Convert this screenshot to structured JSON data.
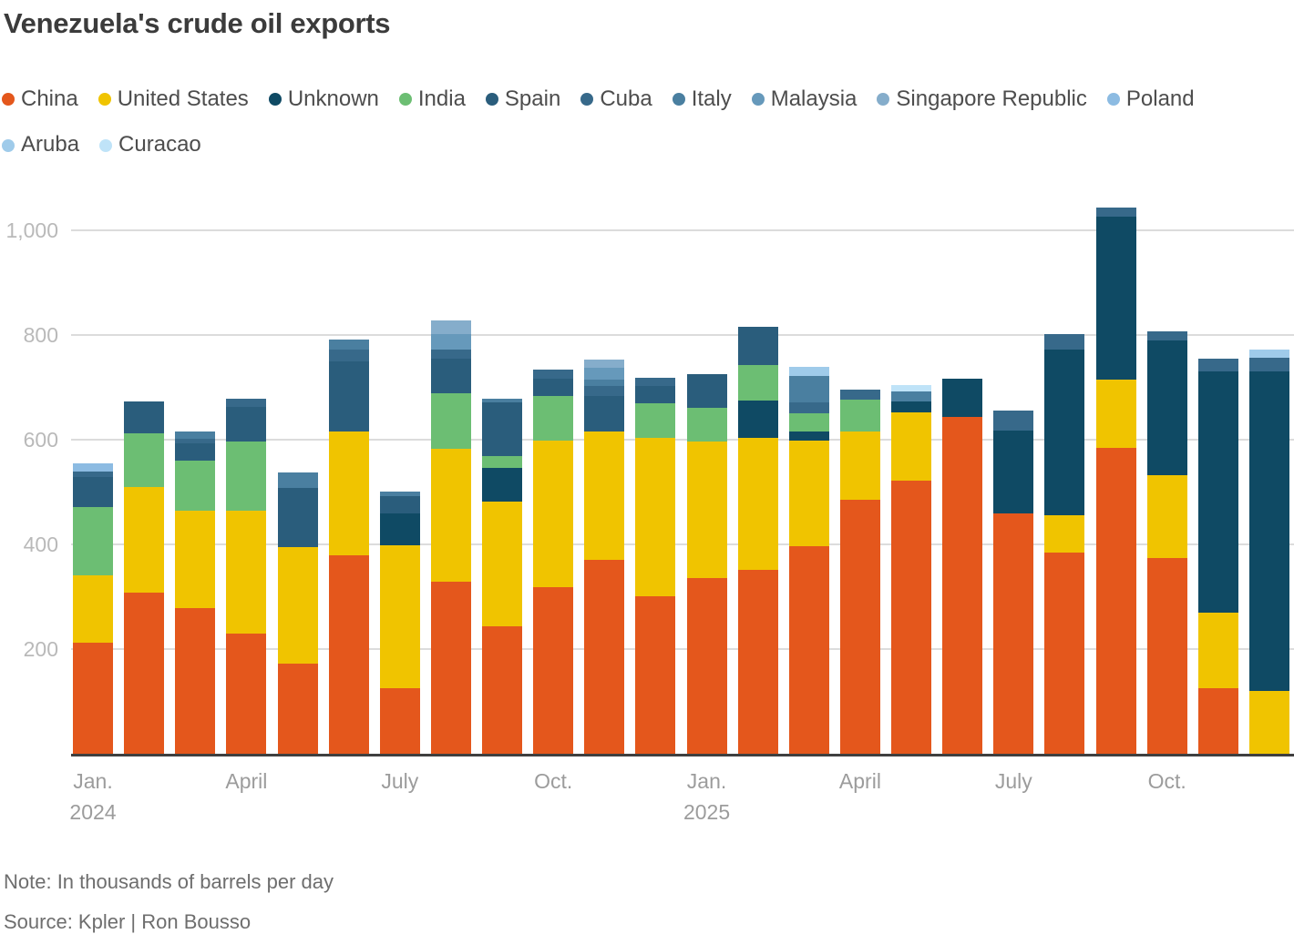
{
  "title": "Venezuela's crude oil exports",
  "note": "Note: In thousands of barrels per day",
  "source": "Source: Kpler | Ron Bousso",
  "legend": {
    "items": [
      "China",
      "United States",
      "Unknown",
      "India",
      "Spain",
      "Cuba",
      "Italy",
      "Malaysia",
      "Singapore Republic",
      "Poland",
      "Aruba",
      "Curacao"
    ]
  },
  "chart_data": {
    "type": "bar",
    "stacked": true,
    "title": "Venezuela's crude oil exports",
    "ylabel": "thousands of barrels per day",
    "xlabel": "month",
    "ylim": [
      0,
      1100
    ],
    "grid": "horizontal",
    "legend_position": "top",
    "categories": [
      "Jan. 2024",
      "Feb. 2024",
      "Mar. 2024",
      "Apr. 2024",
      "May 2024",
      "Jun. 2024",
      "Jul. 2024",
      "Aug. 2024",
      "Sep. 2024",
      "Oct. 2024",
      "Nov. 2024",
      "Dec. 2024",
      "Jan. 2025",
      "Feb. 2025",
      "Mar. 2025",
      "Apr. 2025",
      "May 2025",
      "Jun. 2025",
      "Jul. 2025",
      "Aug. 2025",
      "Sep. 2025",
      "Oct. 2025",
      "Nov. 2025",
      "Dec. 2025"
    ],
    "series": [
      {
        "name": "China",
        "color": "#e4571c",
        "values": [
          212,
          307,
          278,
          230,
          173,
          379,
          125,
          328,
          243,
          318,
          371,
          301,
          335,
          351,
          397,
          485,
          521,
          643,
          459,
          384,
          584,
          374,
          125,
          0
        ]
      },
      {
        "name": "United States",
        "color": "#f0c400",
        "values": [
          129,
          203,
          187,
          235,
          222,
          237,
          274,
          255,
          239,
          280,
          245,
          302,
          262,
          253,
          202,
          131,
          132,
          0,
          0,
          72,
          131,
          158,
          145,
          120
        ]
      },
      {
        "name": "Unknown",
        "color": "#0f4a64",
        "values": [
          0,
          0,
          0,
          0,
          0,
          0,
          60,
          0,
          64,
          0,
          0,
          0,
          0,
          71,
          17,
          0,
          20,
          74,
          158,
          317,
          311,
          258,
          460,
          610
        ]
      },
      {
        "name": "India",
        "color": "#6cbe73",
        "values": [
          130,
          103,
          95,
          131,
          0,
          0,
          0,
          106,
          22,
          85,
          0,
          66,
          64,
          68,
          35,
          61,
          0,
          0,
          0,
          0,
          0,
          0,
          0,
          0
        ]
      },
      {
        "name": "Spain",
        "color": "#2a5d7c",
        "values": [
          58,
          60,
          33,
          67,
          112,
          134,
          33,
          65,
          103,
          34,
          67,
          33,
          65,
          73,
          0,
          0,
          0,
          0,
          0,
          0,
          0,
          0,
          0,
          0
        ]
      },
      {
        "name": "Cuba",
        "color": "#37698a",
        "values": [
          10,
          0,
          8,
          15,
          0,
          23,
          0,
          19,
          0,
          17,
          19,
          17,
          0,
          0,
          21,
          19,
          0,
          0,
          39,
          28,
          17,
          17,
          25,
          26
        ]
      },
      {
        "name": "Italy",
        "color": "#4a7fa0",
        "values": [
          0,
          0,
          15,
          0,
          30,
          18,
          9,
          0,
          7,
          0,
          13,
          0,
          0,
          0,
          50,
          0,
          19,
          0,
          0,
          0,
          0,
          0,
          0,
          0
        ]
      },
      {
        "name": "Malaysia",
        "color": "#6699bb",
        "values": [
          0,
          0,
          0,
          0,
          0,
          0,
          0,
          29,
          0,
          0,
          22,
          0,
          0,
          0,
          0,
          0,
          0,
          0,
          0,
          0,
          0,
          0,
          0,
          0
        ]
      },
      {
        "name": "Singapore Republic",
        "color": "#85adcb",
        "values": [
          0,
          0,
          0,
          0,
          0,
          0,
          0,
          25,
          0,
          0,
          16,
          0,
          0,
          0,
          0,
          0,
          0,
          0,
          0,
          0,
          0,
          0,
          0,
          0
        ]
      },
      {
        "name": "Poland",
        "color": "#8cbbe2",
        "values": [
          16,
          0,
          0,
          0,
          0,
          0,
          0,
          0,
          0,
          0,
          0,
          0,
          0,
          0,
          0,
          0,
          0,
          0,
          0,
          0,
          0,
          0,
          0,
          0
        ]
      },
      {
        "name": "Aruba",
        "color": "#9fcbea",
        "values": [
          0,
          0,
          0,
          0,
          0,
          0,
          0,
          0,
          0,
          0,
          0,
          0,
          0,
          0,
          18,
          0,
          0,
          0,
          0,
          0,
          0,
          0,
          0,
          16
        ]
      },
      {
        "name": "Curacao",
        "color": "#bfe3f8",
        "values": [
          0,
          0,
          0,
          0,
          0,
          0,
          0,
          0,
          0,
          0,
          0,
          0,
          0,
          0,
          0,
          0,
          13,
          0,
          0,
          0,
          0,
          0,
          0,
          0
        ]
      }
    ],
    "y_ticks": [
      {
        "value": 200,
        "label": "200"
      },
      {
        "value": 400,
        "label": "400"
      },
      {
        "value": 600,
        "label": "600"
      },
      {
        "value": 800,
        "label": "800"
      },
      {
        "value": 1000,
        "label": "1,000"
      }
    ],
    "x_ticks": [
      {
        "index": 0,
        "label": "Jan."
      },
      {
        "index": 3,
        "label": "April"
      },
      {
        "index": 6,
        "label": "July"
      },
      {
        "index": 9,
        "label": "Oct."
      },
      {
        "index": 12,
        "label": "Jan."
      },
      {
        "index": 15,
        "label": "April"
      },
      {
        "index": 18,
        "label": "July"
      },
      {
        "index": 21,
        "label": "Oct."
      }
    ],
    "year_labels": [
      {
        "index": 0,
        "label": "2024"
      },
      {
        "index": 12,
        "label": "2025"
      }
    ]
  }
}
